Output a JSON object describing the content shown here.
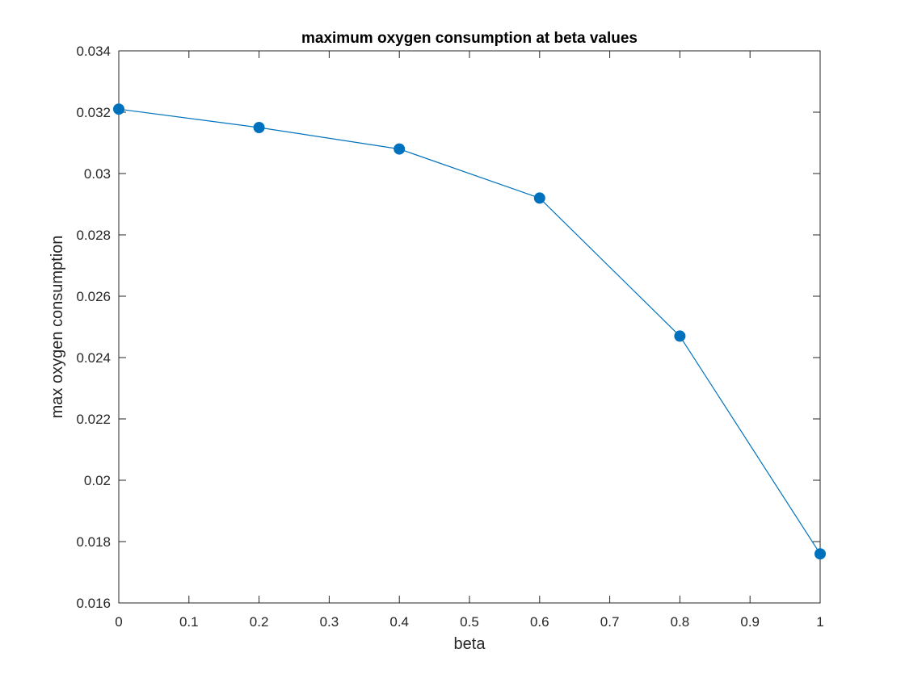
{
  "chart_data": {
    "type": "line",
    "title": "maximum oxygen consumption at beta values",
    "xlabel": "beta",
    "ylabel": "max oxygen consumption",
    "xlim": [
      0,
      1
    ],
    "ylim": [
      0.016,
      0.034
    ],
    "xticks": [
      0,
      0.1,
      0.2,
      0.3,
      0.4,
      0.5,
      0.6,
      0.7,
      0.8,
      0.9,
      1
    ],
    "xtick_labels": [
      "0",
      "0.1",
      "0.2",
      "0.3",
      "0.4",
      "0.5",
      "0.6",
      "0.7",
      "0.8",
      "0.9",
      "1"
    ],
    "yticks": [
      0.016,
      0.018,
      0.02,
      0.022,
      0.024,
      0.026,
      0.028,
      0.03,
      0.032,
      0.034
    ],
    "ytick_labels": [
      "0.016",
      "0.018",
      "0.02",
      "0.022",
      "0.024",
      "0.026",
      "0.028",
      "0.03",
      "0.032",
      "0.034"
    ],
    "grid": false,
    "legend": "none",
    "series": [
      {
        "x": [
          0,
          0.2,
          0.4,
          0.6,
          0.8,
          1
        ],
        "y": [
          0.0321,
          0.0315,
          0.0308,
          0.0292,
          0.0247,
          0.0176
        ],
        "color": "#0072BD",
        "marker": "filled-circle"
      }
    ]
  }
}
